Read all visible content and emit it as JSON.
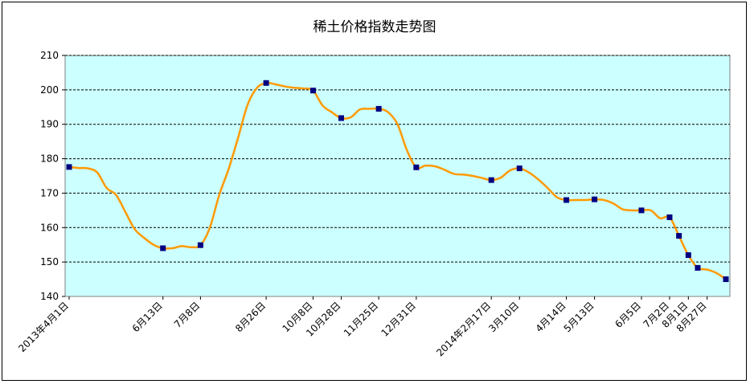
{
  "chart_data": {
    "type": "line",
    "title": "稀土价格指数走势图",
    "xlabel": "",
    "ylabel": "",
    "ylim": [
      140,
      210
    ],
    "y_ticks": [
      140,
      150,
      160,
      170,
      180,
      190,
      200,
      210
    ],
    "grid": true,
    "legend": "none",
    "x_tick_labels": [
      "2013年4月1日",
      "6月13日",
      "7月8日",
      "8月26日",
      "10月8日",
      "10月28日",
      "11月25日",
      "12月31日",
      "2014年2月17日",
      "3月10日",
      "4月14日",
      "5月13日",
      "6月5日",
      "7月2日",
      "8月1日",
      "8月27日"
    ],
    "series": [
      {
        "values": [
          177.6,
          177.3,
          177.2,
          176.0,
          171.5,
          169.5,
          164.5,
          159.5,
          157.0,
          155.0,
          154.0,
          154.0,
          154.6,
          154.3,
          154.9,
          160.0,
          169.5,
          177.0,
          186.0,
          195.5,
          200.5,
          202.0,
          201.6,
          201.0,
          200.6,
          200.4,
          199.8,
          195.5,
          193.5,
          191.8,
          192.0,
          194.3,
          194.5,
          194.5,
          193.5,
          190.0,
          182.5,
          177.5,
          178.0,
          177.8,
          176.8,
          175.6,
          175.4,
          175.0,
          174.4,
          173.8,
          174.5,
          176.6,
          177.2,
          176.0,
          174.0,
          171.5,
          168.8,
          168.0,
          168.0,
          168.0,
          168.2,
          168.0,
          167.0,
          165.3,
          165.0,
          165.0,
          165.0,
          162.7,
          163.0,
          157.6,
          152.0,
          148.3,
          147.8,
          146.8,
          145.0
        ]
      }
    ],
    "marker_indices": [
      0,
      10,
      14,
      21,
      26,
      29,
      33,
      37,
      45,
      48,
      53,
      56,
      61,
      64,
      65,
      66,
      67,
      70
    ],
    "x_tick_indices": [
      0,
      10,
      14,
      21,
      26,
      29,
      33,
      37,
      45,
      48,
      53,
      56,
      61,
      64,
      66,
      68
    ],
    "colors": {
      "plot_background": "#ccffff",
      "line": "#ff9900",
      "marker": "#000080",
      "grid": "#000000"
    }
  }
}
